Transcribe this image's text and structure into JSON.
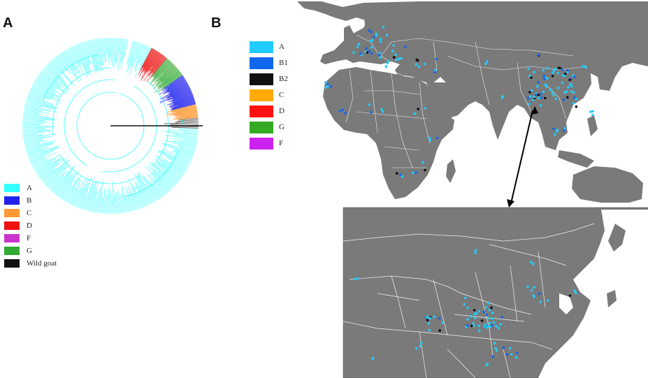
{
  "panels": {
    "a": "A",
    "b": "B"
  },
  "legend_a": [
    {
      "label": "A",
      "color": "#33ffff"
    },
    {
      "label": "B",
      "color": "#2222ee"
    },
    {
      "label": "C",
      "color": "#ff9933"
    },
    {
      "label": "D",
      "color": "#ee1111"
    },
    {
      "label": "F",
      "color": "#cc33cc"
    },
    {
      "label": "G",
      "color": "#33aa33"
    },
    {
      "label": "Wild goat",
      "color": "#111111"
    }
  ],
  "legend_b": [
    {
      "label": "A",
      "color": "#22ccff"
    },
    {
      "label": "B1",
      "color": "#1166ee"
    },
    {
      "label": "B2",
      "color": "#111111"
    },
    {
      "label": "C",
      "color": "#ffaa00"
    },
    {
      "label": "D",
      "color": "#ff1111"
    },
    {
      "label": "G",
      "color": "#33aa22"
    },
    {
      "label": "F",
      "color": "#cc22ee"
    }
  ],
  "colors": {
    "land": "#7a7a7a",
    "border": "#f0f0f0",
    "sea": "#ffffff",
    "sample_a": "#22ccff",
    "sample_b1": "#1166ee"
  }
}
